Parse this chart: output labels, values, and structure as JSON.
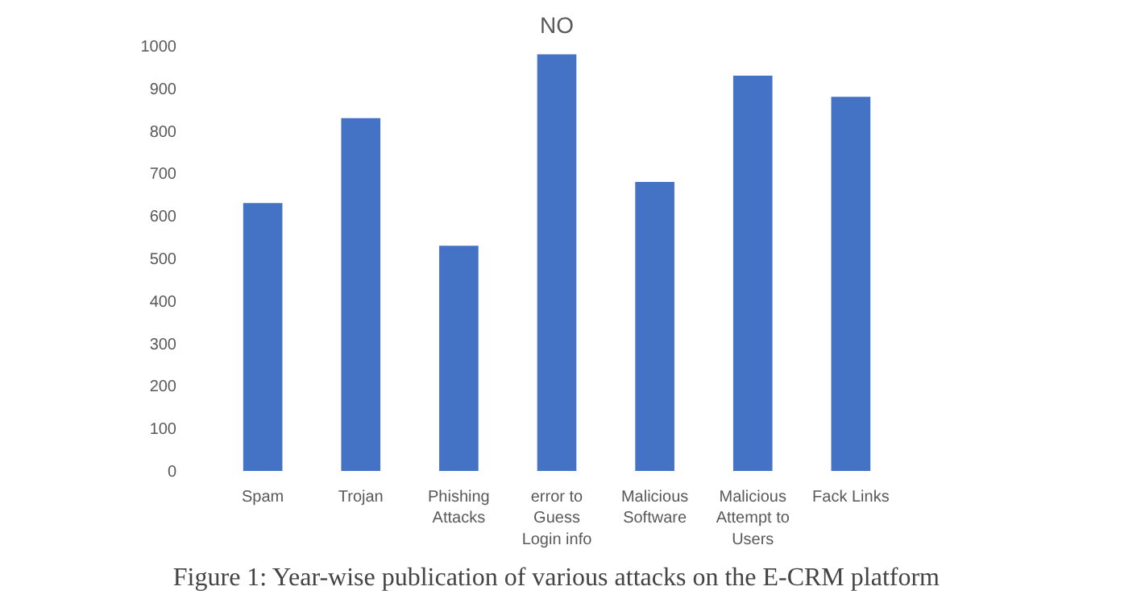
{
  "chart_data": {
    "type": "bar",
    "title": "NO",
    "categories": [
      "Spam",
      "Trojan",
      "Phishing Attacks",
      "error to Guess Login info",
      "Malicious Software",
      "Malicious Attempt to Users",
      "Fack Links"
    ],
    "values": [
      630,
      830,
      530,
      980,
      680,
      930,
      880
    ],
    "color": "#4472c4",
    "ylim": [
      0,
      1000
    ],
    "yticks": [
      0,
      100,
      200,
      300,
      400,
      500,
      600,
      700,
      800,
      900,
      1000
    ],
    "grid": false,
    "annotations": [
      "Figure 1: Year-wise publication of various attacks on the E-CRM platform"
    ]
  }
}
